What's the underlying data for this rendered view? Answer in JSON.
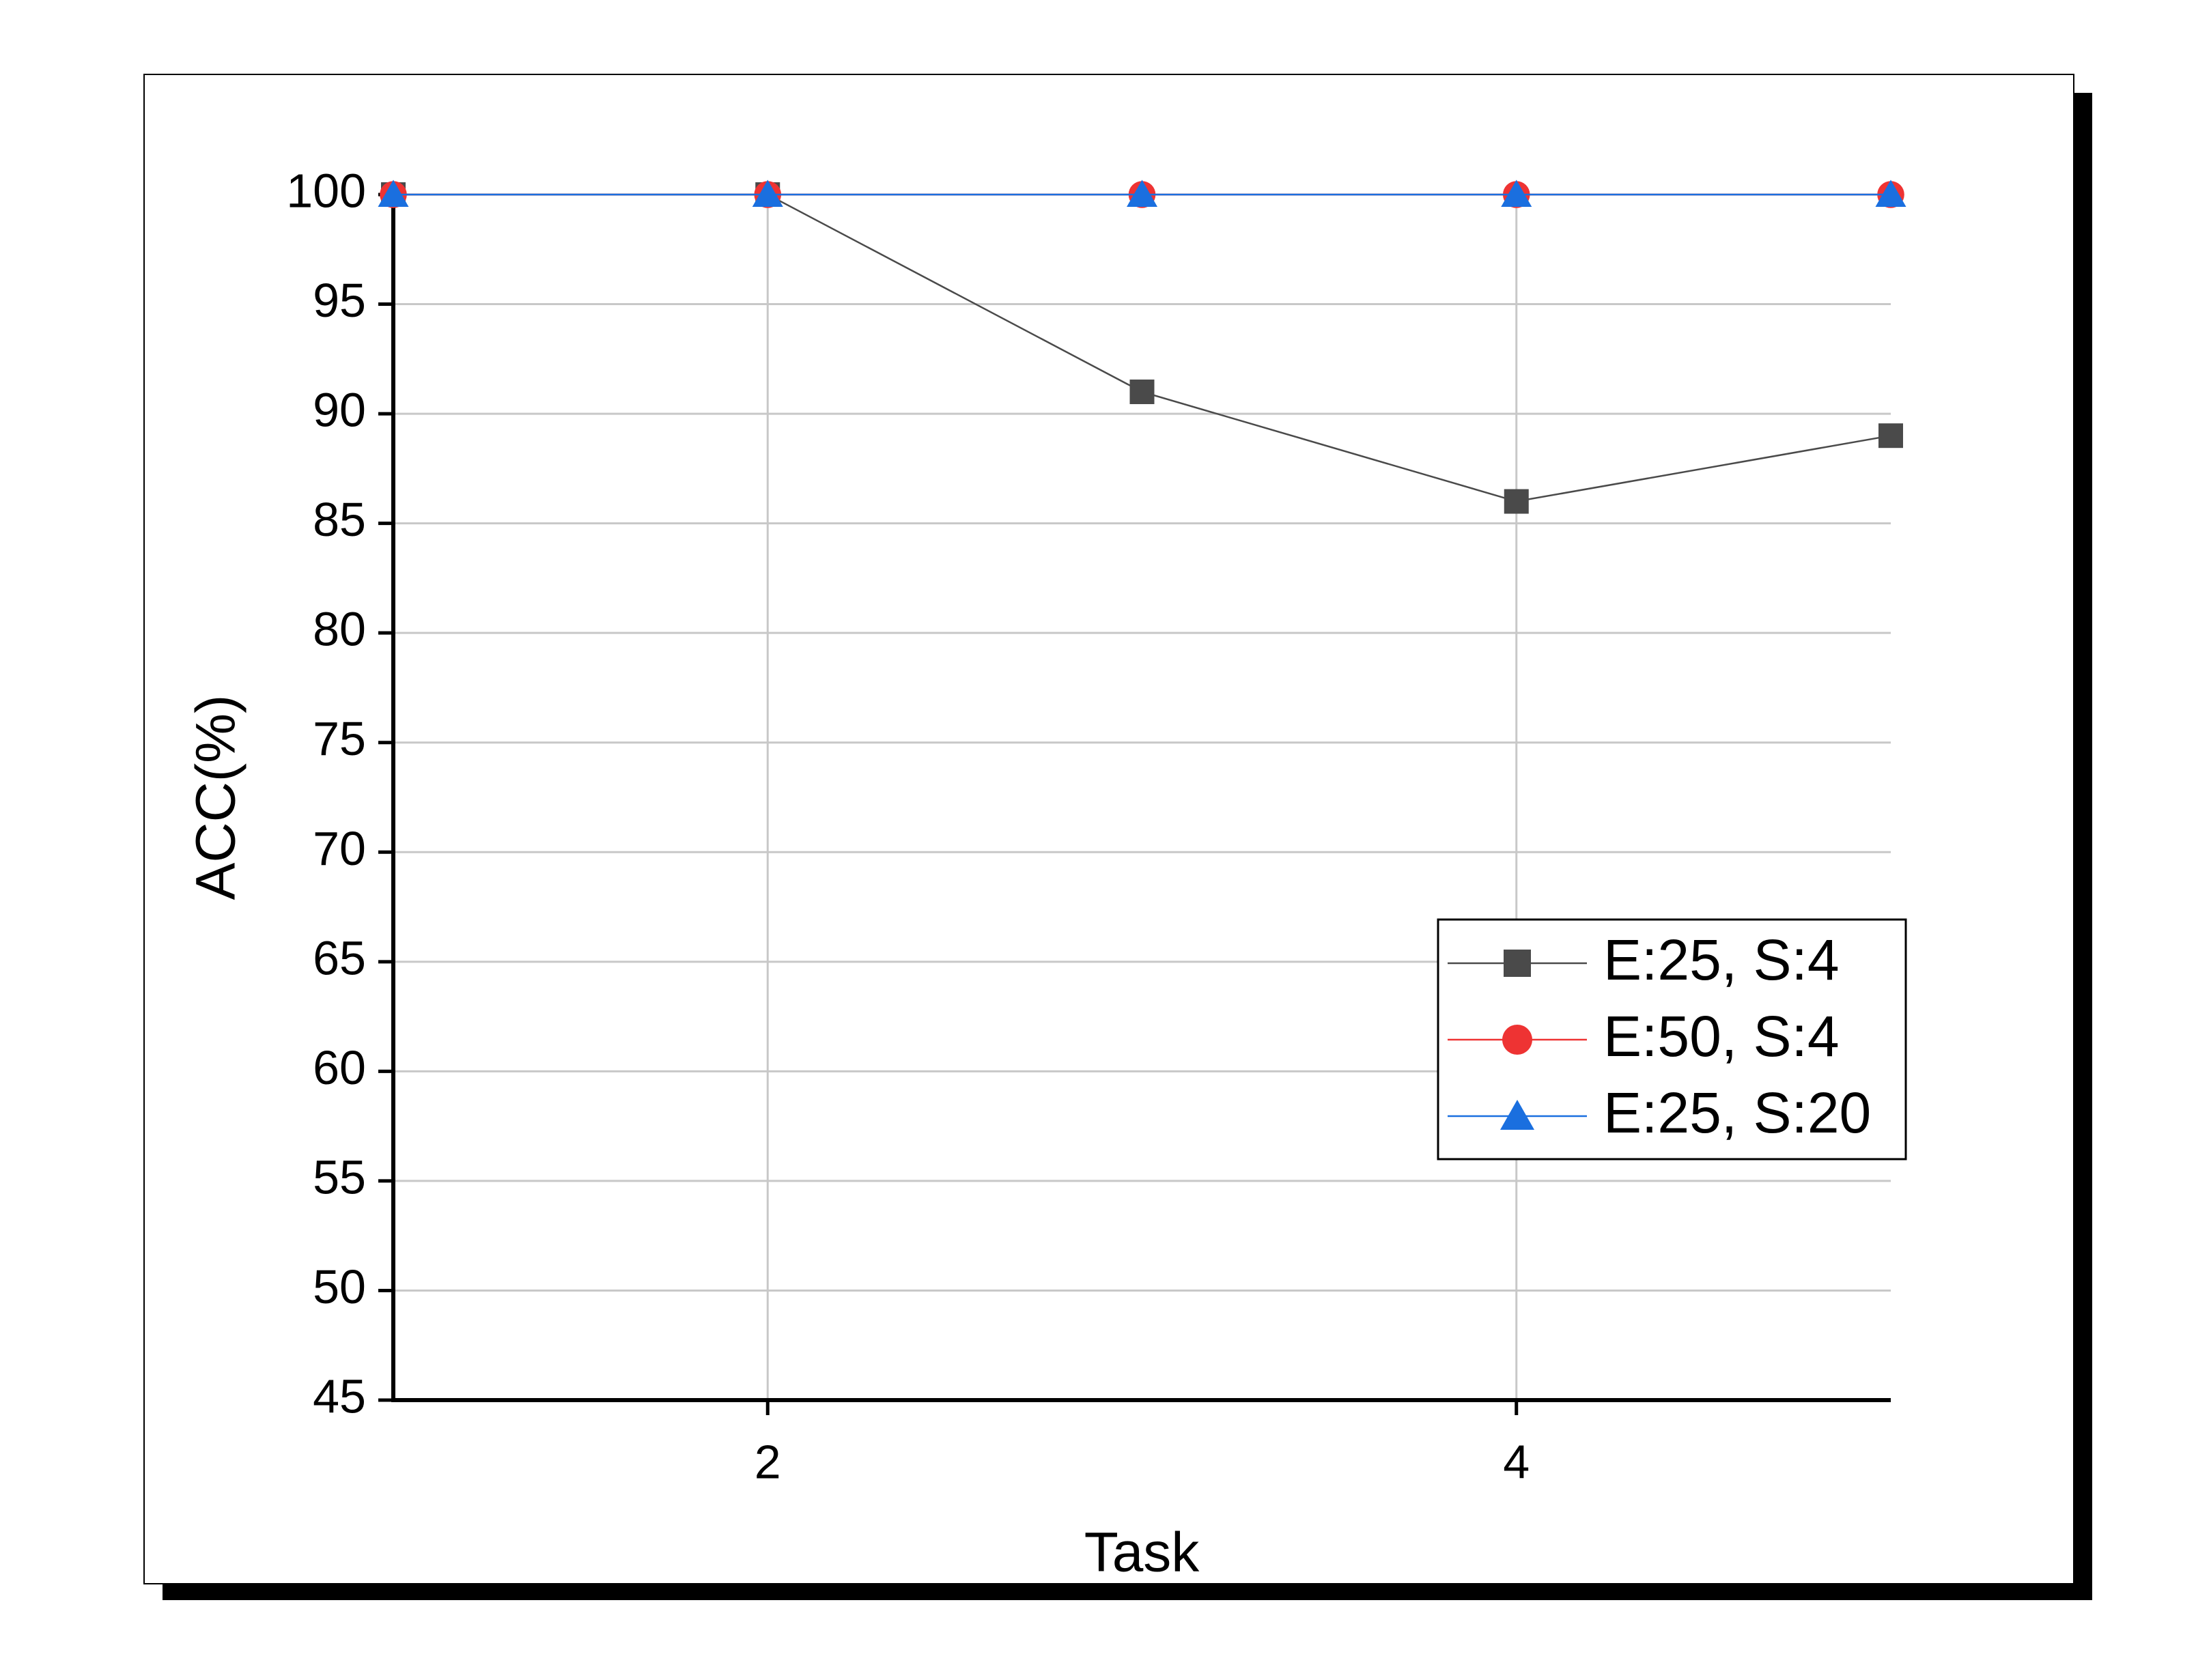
{
  "chart_data": {
    "type": "line",
    "x_label": "Task",
    "y_label": "ACC(%)",
    "x": [
      1,
      2,
      3,
      4,
      5
    ],
    "xlim": [
      1,
      5
    ],
    "xticks": [
      2,
      4
    ],
    "ylim": [
      45,
      100
    ],
    "yticks": [
      45,
      50,
      55,
      60,
      65,
      70,
      75,
      80,
      85,
      90,
      95,
      100
    ],
    "grid": true,
    "legend": "right",
    "series": [
      {
        "name": "E:25, S:4",
        "color": "#4a4a4a",
        "marker": "square",
        "values": [
          100,
          100,
          91,
          86,
          89
        ]
      },
      {
        "name": "E:50, S:4",
        "color": "#ee3333",
        "marker": "circle",
        "values": [
          100,
          100,
          100,
          100,
          100
        ]
      },
      {
        "name": "E:25, S:20",
        "color": "#1a6fdf",
        "marker": "triangle",
        "values": [
          100,
          100,
          100,
          100,
          100
        ]
      }
    ]
  }
}
